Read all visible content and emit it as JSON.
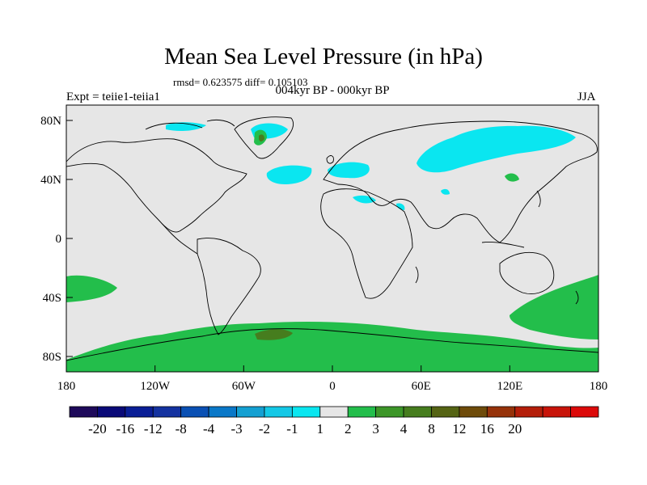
{
  "map": {
    "title": "Mean Sea Level Pressure (in hPa)",
    "stats": "rmsd= 0.623575  diff= 0.105103",
    "left_label": "Expt = teiie1-teiia1",
    "center_label": "004kyr BP - 000kyr BP",
    "right_label": "JJA",
    "lat_ticks": [
      "80N",
      "40N",
      "0",
      "40S",
      "80S"
    ],
    "lon_ticks": [
      "180",
      "120W",
      "60W",
      "0",
      "60E",
      "120E",
      "180"
    ],
    "background_color": "#e6e6e6"
  },
  "colorbar": {
    "colors": [
      "#1e0a5a",
      "#0a0a78",
      "#0a1e96",
      "#1432a0",
      "#0a50b4",
      "#0a78c8",
      "#14a0d2",
      "#14c8e6",
      "#0ae6f0",
      "#e6e6e6",
      "#23be4b",
      "#3c9628",
      "#467d1e",
      "#556414",
      "#6e4b0a",
      "#96320a",
      "#b41e0a",
      "#c8140a",
      "#dc0a0a"
    ],
    "labels": [
      "-20",
      "-16",
      "-12",
      "-8",
      "-4",
      "-3",
      "-2",
      "-1",
      "1",
      "2",
      "3",
      "4",
      "8",
      "12",
      "16",
      "20"
    ]
  }
}
